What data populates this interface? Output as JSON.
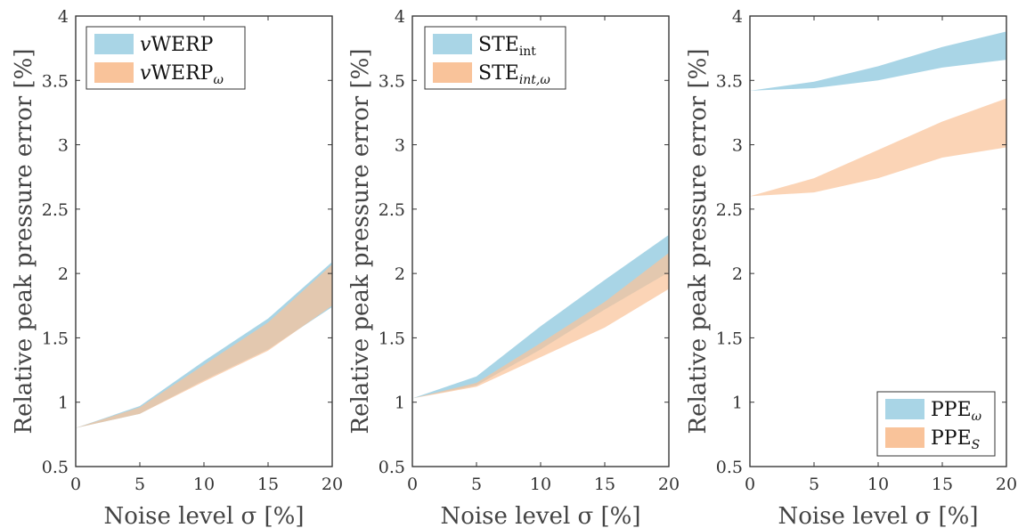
{
  "chart_data": [
    {
      "type": "area",
      "xlabel": "Noise level σ [%]",
      "ylabel": "Relative peak pressure error [%]",
      "xlim": [
        0,
        20
      ],
      "ylim": [
        0.5,
        4
      ],
      "xticks": [
        "0",
        "5",
        "10",
        "15",
        "20"
      ],
      "yticks": [
        "0.5",
        "1",
        "1.5",
        "2",
        "2.5",
        "3",
        "3.5",
        "4"
      ],
      "legend_position": "top-left",
      "x": [
        0,
        5,
        10,
        15,
        20
      ],
      "series": [
        {
          "name": "vWERP",
          "base": "v",
          "sub": "",
          "italic_base": true,
          "color": "#a9d5e6",
          "lower": [
            0.8,
            0.91,
            1.17,
            1.41,
            1.74
          ],
          "upper": [
            0.8,
            0.97,
            1.32,
            1.65,
            2.09
          ]
        },
        {
          "name": "vWERP_ω",
          "base": "v",
          "sub": "ω",
          "italic_base": true,
          "color": "#f9c39a",
          "lower": [
            0.8,
            0.91,
            1.16,
            1.4,
            1.75
          ],
          "upper": [
            0.8,
            0.96,
            1.29,
            1.62,
            2.07
          ]
        }
      ]
    },
    {
      "type": "area",
      "xlabel": "Noise level σ [%]",
      "ylabel": "Relative peak pressure error [%]",
      "xlim": [
        0,
        20
      ],
      "ylim": [
        0.5,
        4
      ],
      "xticks": [
        "0",
        "5",
        "10",
        "15",
        "20"
      ],
      "yticks": [
        "0.5",
        "1",
        "1.5",
        "2",
        "2.5",
        "3",
        "3.5",
        "4"
      ],
      "legend_position": "top-left",
      "x": [
        0,
        5,
        10,
        15,
        20
      ],
      "series": [
        {
          "name": "STE_int",
          "base": "STE",
          "sub": "int",
          "italic_base": false,
          "color": "#a9d5e6",
          "lower": [
            1.03,
            1.13,
            1.41,
            1.72,
            2.01
          ],
          "upper": [
            1.03,
            1.2,
            1.59,
            1.95,
            2.3
          ]
        },
        {
          "name": "STE_int,ω",
          "base": "STE",
          "sub": "int,ω",
          "italic_base": false,
          "color": "#f9c39a",
          "lower": [
            1.03,
            1.12,
            1.35,
            1.58,
            1.88
          ],
          "upper": [
            1.03,
            1.15,
            1.46,
            1.78,
            2.16
          ]
        }
      ]
    },
    {
      "type": "area",
      "xlabel": "Noise level σ [%]",
      "ylabel": "Relative peak pressure error [%]",
      "xlim": [
        0,
        20
      ],
      "ylim": [
        0.5,
        4
      ],
      "xticks": [
        "0",
        "5",
        "10",
        "15",
        "20"
      ],
      "yticks": [
        "0.5",
        "1",
        "1.5",
        "2",
        "2.5",
        "3",
        "3.5",
        "4"
      ],
      "legend_position": "bottom-right",
      "x": [
        0,
        5,
        10,
        15,
        20
      ],
      "series": [
        {
          "name": "PPE_ω",
          "base": "PPE",
          "sub": "ω",
          "italic_base": false,
          "color": "#a9d5e6",
          "lower": [
            3.42,
            3.44,
            3.5,
            3.6,
            3.66
          ],
          "upper": [
            3.42,
            3.49,
            3.61,
            3.76,
            3.88
          ]
        },
        {
          "name": "PPE_S",
          "base": "PPE",
          "sub": "S",
          "italic_base": false,
          "color": "#f9c39a",
          "lower": [
            2.6,
            2.63,
            2.74,
            2.9,
            2.98
          ],
          "upper": [
            2.6,
            2.74,
            2.96,
            3.18,
            3.36
          ]
        }
      ]
    }
  ]
}
